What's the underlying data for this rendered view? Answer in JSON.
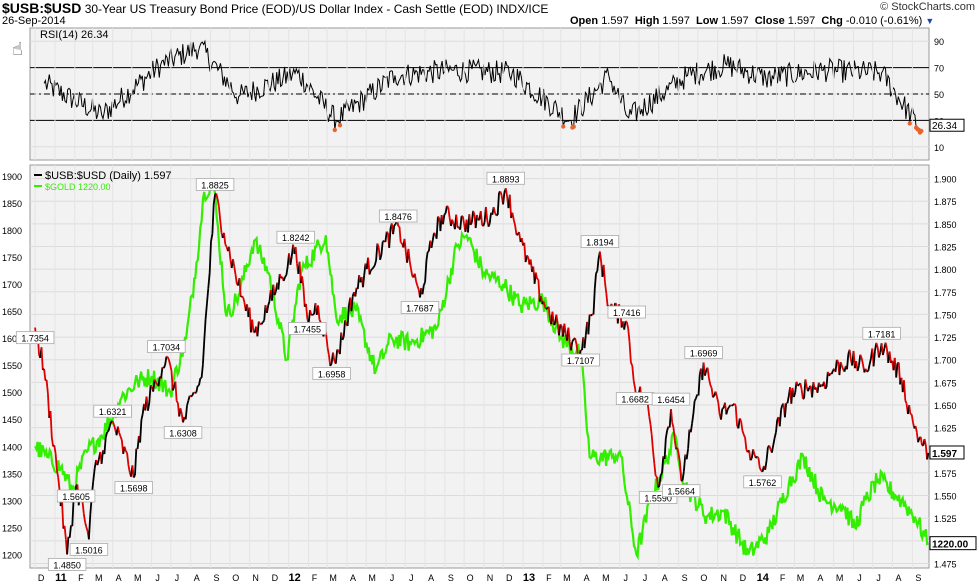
{
  "header": {
    "symbol": "$USB:$USD",
    "description": "30-Year US Treasury Bond Price (EOD)/US Dollar Index - Cash Settle (EOD)",
    "exchange": "INDX/ICE",
    "date": "26-Sep-2014",
    "brand": "© StockCharts.com",
    "open_label": "Open",
    "open": "1.597",
    "high_label": "High",
    "high": "1.597",
    "low_label": "Low",
    "low": "1.597",
    "close_label": "Close",
    "close": "1.597",
    "chg_label": "Chg",
    "chg": "-0.010 (-0.61%)"
  },
  "colors": {
    "price": "#000000",
    "price_down": "#dd0000",
    "gold": "#33ee00",
    "panel_bg": "#f2f2f2",
    "rsi_oversold": "#e8642c"
  },
  "chart_data": [
    {
      "type": "line",
      "panel": "RSI",
      "title": "RSI(14) 26.34",
      "ylim": [
        0,
        100
      ],
      "yticks": [
        10,
        30,
        50,
        70,
        90
      ],
      "reference_lines": [
        30,
        50,
        70
      ],
      "last_value": "26.34",
      "series": [
        {
          "name": "RSI(14)",
          "x": [
            "2010-12",
            "2011-03",
            "2011-06",
            "2011-08",
            "2011-10",
            "2012-01",
            "2012-03",
            "2012-06",
            "2012-09",
            "2012-12",
            "2013-03",
            "2013-05",
            "2013-06",
            "2013-09",
            "2013-11",
            "2014-01",
            "2014-04",
            "2014-07",
            "2014-09"
          ],
          "values": [
            58,
            34,
            72,
            86,
            48,
            66,
            30,
            64,
            68,
            66,
            30,
            64,
            32,
            64,
            72,
            62,
            68,
            66,
            22
          ]
        }
      ]
    },
    {
      "type": "line",
      "panel": "Price",
      "x_ticks": [
        "D",
        "11",
        "F",
        "M",
        "A",
        "M",
        "J",
        "J",
        "A",
        "S",
        "O",
        "N",
        "D",
        "12",
        "F",
        "M",
        "A",
        "M",
        "J",
        "J",
        "A",
        "S",
        "O",
        "N",
        "D",
        "13",
        "F",
        "M",
        "A",
        "M",
        "J",
        "J",
        "A",
        "S",
        "O",
        "N",
        "D",
        "14",
        "F",
        "M",
        "A",
        "M",
        "J",
        "J",
        "A",
        "S"
      ],
      "legend": [
        "$USB:$USD (Daily) 1.597",
        "$GOLD 1220.00"
      ],
      "series": [
        {
          "name": "$USB:$USD (Daily)",
          "axis": "right",
          "ylim": [
            1.47,
            1.915
          ],
          "yticks": [
            "1.475",
            "1.500",
            "1.525",
            "1.550",
            "1.575",
            "1.600",
            "1.625",
            "1.650",
            "1.675",
            "1.700",
            "1.725",
            "1.750",
            "1.775",
            "1.800",
            "1.825",
            "1.850",
            "1.875",
            "1.900"
          ],
          "last_value": "1.597",
          "x": [
            "2010-12-01",
            "2010-12-15",
            "2011-01-06",
            "2011-01-20",
            "2011-02-03",
            "2011-02-15",
            "2011-02-23",
            "2011-03-04",
            "2011-03-17",
            "2011-04-01",
            "2011-05-04",
            "2011-05-18",
            "2011-06-24",
            "2011-07-20",
            "2011-08-18",
            "2011-09-08",
            "2011-09-22",
            "2011-10-20",
            "2011-11-09",
            "2011-11-30",
            "2011-12-20",
            "2012-01-12",
            "2012-01-30",
            "2012-02-16",
            "2012-03-08",
            "2012-03-19",
            "2012-04-10",
            "2012-05-02",
            "2012-05-31",
            "2012-06-20",
            "2012-07-24",
            "2012-08-15",
            "2012-08-31",
            "2012-10-01",
            "2012-11-14",
            "2012-12-05",
            "2012-12-28",
            "2013-01-29",
            "2013-02-20",
            "2013-03-19",
            "2013-04-01",
            "2013-04-19",
            "2013-05-01",
            "2013-05-15",
            "2013-06-12",
            "2013-06-25",
            "2013-07-15",
            "2013-07-31",
            "2013-08-20",
            "2013-09-05",
            "2013-09-20",
            "2013-10-10",
            "2013-11-04",
            "2013-11-25",
            "2013-12-20",
            "2014-01-10",
            "2014-01-31",
            "2014-02-20",
            "2014-03-20",
            "2014-04-10",
            "2014-05-02",
            "2014-05-28",
            "2014-06-20",
            "2014-07-15",
            "2014-08-15",
            "2014-08-29",
            "2014-09-08",
            "2014-09-18",
            "2014-09-26"
          ],
          "values": [
            1.7354,
            1.69,
            1.57,
            1.485,
            1.5605,
            1.53,
            1.5016,
            1.58,
            1.6,
            1.6321,
            1.5698,
            1.64,
            1.7034,
            1.6308,
            1.68,
            1.8825,
            1.84,
            1.77,
            1.73,
            1.76,
            1.79,
            1.8242,
            1.7455,
            1.76,
            1.6958,
            1.71,
            1.77,
            1.8,
            1.83,
            1.8476,
            1.7687,
            1.84,
            1.86,
            1.85,
            1.86,
            1.8893,
            1.83,
            1.77,
            1.74,
            1.72,
            1.7107,
            1.75,
            1.8194,
            1.76,
            1.7416,
            1.6682,
            1.65,
            1.559,
            1.6454,
            1.5664,
            1.62,
            1.6969,
            1.64,
            1.65,
            1.6,
            1.5762,
            1.62,
            1.66,
            1.67,
            1.67,
            1.69,
            1.7,
            1.69,
            1.7181,
            1.68,
            1.64,
            1.62,
            1.605,
            1.597
          ]
        },
        {
          "name": "$GOLD",
          "axis": "left",
          "ylim": [
            1175,
            1920
          ],
          "yticks": [
            1200,
            1250,
            1300,
            1350,
            1400,
            1450,
            1500,
            1550,
            1600,
            1650,
            1700,
            1750,
            1800,
            1850,
            1900
          ],
          "last_value": "1220.00",
          "x": [
            "2010-12-01",
            "2010-12-20",
            "2011-01-10",
            "2011-01-28",
            "2011-02-20",
            "2011-03-15",
            "2011-04-15",
            "2011-05-10",
            "2011-06-01",
            "2011-06-30",
            "2011-07-25",
            "2011-08-10",
            "2011-08-22",
            "2011-09-05",
            "2011-09-26",
            "2011-10-15",
            "2011-11-08",
            "2011-12-01",
            "2011-12-29",
            "2012-01-20",
            "2012-02-28",
            "2012-03-15",
            "2012-04-15",
            "2012-05-16",
            "2012-06-10",
            "2012-07-10",
            "2012-08-20",
            "2012-09-20",
            "2012-10-05",
            "2012-11-01",
            "2012-12-01",
            "2012-12-28",
            "2013-02-01",
            "2013-03-01",
            "2013-04-01",
            "2013-04-15",
            "2013-05-20",
            "2013-06-01",
            "2013-06-27",
            "2013-07-20",
            "2013-08-27",
            "2013-09-10",
            "2013-10-15",
            "2013-11-10",
            "2013-12-19",
            "2014-01-20",
            "2014-02-20",
            "2014-03-15",
            "2014-04-15",
            "2014-05-15",
            "2014-06-03",
            "2014-06-20",
            "2014-07-10",
            "2014-08-15",
            "2014-09-05",
            "2014-09-26"
          ],
          "values": [
            1400,
            1380,
            1360,
            1320,
            1390,
            1420,
            1490,
            1520,
            1530,
            1500,
            1600,
            1740,
            1870,
            1890,
            1640,
            1680,
            1780,
            1720,
            1560,
            1720,
            1790,
            1640,
            1650,
            1540,
            1600,
            1590,
            1620,
            1770,
            1790,
            1720,
            1700,
            1660,
            1670,
            1600,
            1570,
            1380,
            1380,
            1390,
            1200,
            1300,
            1420,
            1330,
            1270,
            1280,
            1200,
            1240,
            1330,
            1380,
            1300,
            1290,
            1250,
            1300,
            1340,
            1300,
            1270,
            1220
          ]
        }
      ],
      "annotations": [
        {
          "x": "2010-12-01",
          "label": "1.7354",
          "value": 1.7354
        },
        {
          "x": "2011-01-20",
          "label": "1.4850",
          "value": 1.485
        },
        {
          "x": "2011-02-03",
          "label": "1.5605",
          "value": 1.5605
        },
        {
          "x": "2011-02-23",
          "label": "1.5016",
          "value": 1.5016
        },
        {
          "x": "2011-04-01",
          "label": "1.6321",
          "value": 1.6321
        },
        {
          "x": "2011-05-04",
          "label": "1.5698",
          "value": 1.5698
        },
        {
          "x": "2011-06-24",
          "label": "1.7034",
          "value": 1.7034
        },
        {
          "x": "2011-07-20",
          "label": "1.6308",
          "value": 1.6308
        },
        {
          "x": "2011-09-08",
          "label": "1.8825",
          "value": 1.8825
        },
        {
          "x": "2012-01-12",
          "label": "1.8242",
          "value": 1.8242
        },
        {
          "x": "2012-01-30",
          "label": "1.7455",
          "value": 1.7455
        },
        {
          "x": "2012-03-08",
          "label": "1.6958",
          "value": 1.6958
        },
        {
          "x": "2012-06-20",
          "label": "1.8476",
          "value": 1.8476
        },
        {
          "x": "2012-07-24",
          "label": "1.7687",
          "value": 1.7687
        },
        {
          "x": "2012-12-05",
          "label": "1.8893",
          "value": 1.8893
        },
        {
          "x": "2013-04-01",
          "label": "1.7107",
          "value": 1.7107
        },
        {
          "x": "2013-05-01",
          "label": "1.8194",
          "value": 1.8194
        },
        {
          "x": "2013-06-12",
          "label": "1.7416",
          "value": 1.7416
        },
        {
          "x": "2013-06-25",
          "label": "1.6682",
          "value": 1.6682
        },
        {
          "x": "2013-07-31",
          "label": "1.5590",
          "value": 1.559
        },
        {
          "x": "2013-08-20",
          "label": "1.6454",
          "value": 1.6454
        },
        {
          "x": "2013-09-05",
          "label": "1.5664",
          "value": 1.5664
        },
        {
          "x": "2013-10-10",
          "label": "1.6969",
          "value": 1.6969
        },
        {
          "x": "2014-01-10",
          "label": "1.5762",
          "value": 1.5762
        },
        {
          "x": "2014-07-15",
          "label": "1.7181",
          "value": 1.7181
        }
      ]
    }
  ]
}
